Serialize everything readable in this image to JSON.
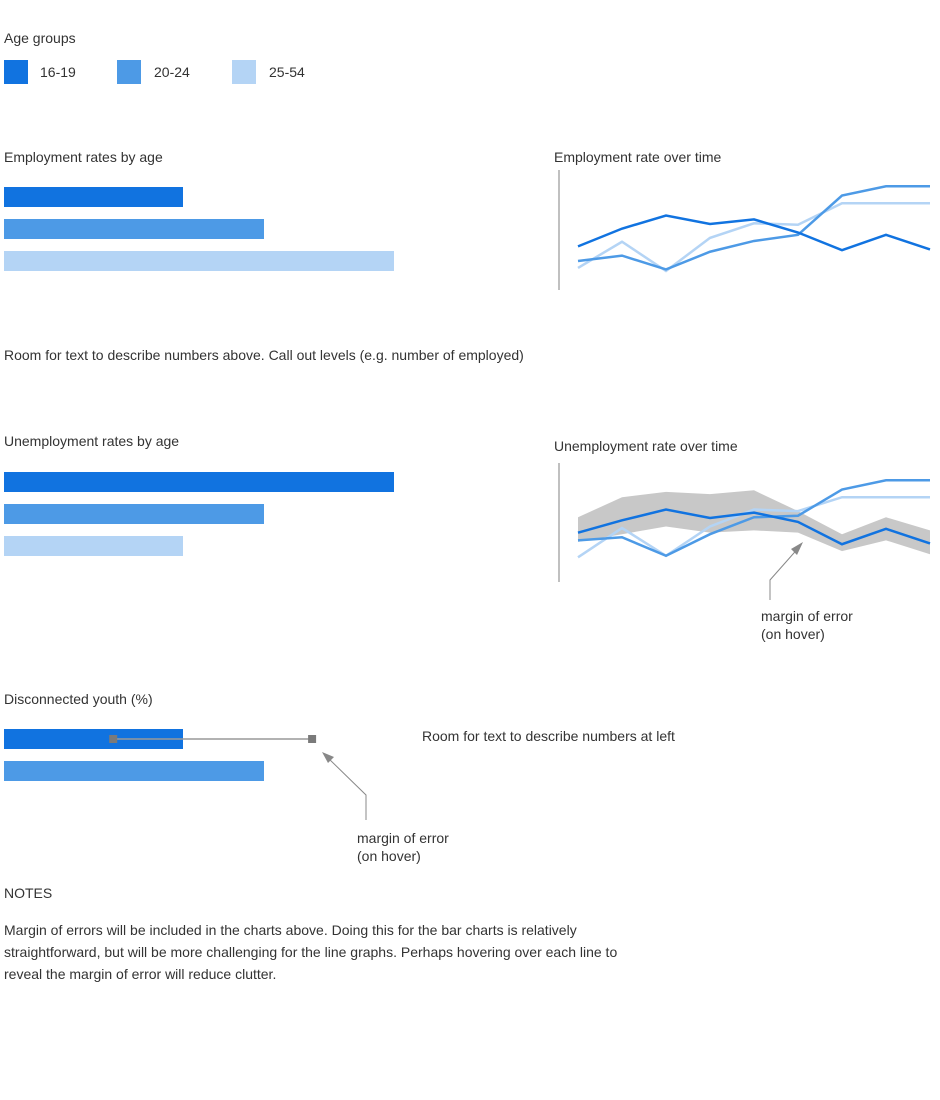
{
  "legend": {
    "title": "Age groups",
    "items": [
      {
        "label": "16-19",
        "color": "#1173e0"
      },
      {
        "label": "20-24",
        "color": "#4d9ae6"
      },
      {
        "label": "25-54",
        "color": "#b4d4f5"
      }
    ]
  },
  "employment": {
    "bar_title": "Employment rates by age",
    "line_title": "Employment rate over time",
    "bars": [
      {
        "group": "16-19",
        "value": 0.46
      },
      {
        "group": "20-24",
        "value": 0.667
      },
      {
        "group": "25-54",
        "value": 1.0
      }
    ],
    "lines": [
      {
        "group": "16-19",
        "values": [
          0.32,
          0.55,
          0.72,
          0.61,
          0.67,
          0.5,
          0.27,
          0.47,
          0.28
        ]
      },
      {
        "group": "20-24",
        "values": [
          0.13,
          0.2,
          0.02,
          0.25,
          0.39,
          0.47,
          0.98,
          1.1,
          1.1
        ]
      },
      {
        "group": "25-54",
        "values": [
          0.04,
          0.38,
          0.0,
          0.43,
          0.62,
          0.6,
          0.88,
          0.88,
          0.88
        ]
      }
    ],
    "note": "Room for text to describe numbers above. Call out levels (e.g. number of employed)"
  },
  "unemployment": {
    "bar_title": "Unemployment rates by age",
    "line_title": "Unemployment rate over time",
    "bars": [
      {
        "group": "16-19",
        "value": 1.0
      },
      {
        "group": "20-24",
        "value": 0.667
      },
      {
        "group": "25-54",
        "value": 0.46
      }
    ],
    "lines": [
      {
        "group": "16-19",
        "values": [
          0.42,
          0.58,
          0.72,
          0.61,
          0.68,
          0.56,
          0.27,
          0.47,
          0.28
        ]
      },
      {
        "group": "20-24",
        "values": [
          0.32,
          0.36,
          0.12,
          0.4,
          0.62,
          0.64,
          0.98,
          1.1,
          1.1
        ]
      },
      {
        "group": "25-54",
        "values": [
          0.1,
          0.48,
          0.12,
          0.5,
          0.72,
          0.7,
          0.88,
          0.88,
          0.88
        ]
      }
    ],
    "moe_upper": [
      0.62,
      0.88,
      0.95,
      0.92,
      0.97,
      0.7,
      0.4,
      0.62,
      0.45
    ],
    "moe_lower": [
      0.3,
      0.4,
      0.5,
      0.42,
      0.45,
      0.42,
      0.18,
      0.32,
      0.14
    ],
    "callout": [
      "margin of error",
      "(on hover)"
    ]
  },
  "disconnected": {
    "title": "Disconnected youth (%)",
    "bars": [
      {
        "group": "16-19",
        "value": 0.46,
        "moe_low": 0.28,
        "moe_high": 0.79
      },
      {
        "group": "20-24",
        "value": 0.667
      }
    ],
    "callout": [
      "margin of error",
      "(on hover)"
    ],
    "note": "Room for text to describe numbers at left"
  },
  "notes": {
    "heading": "NOTES",
    "body": "Margin of errors will be included in the charts above. Doing this for the bar charts is relatively straightforward, but will be more challenging for the line graphs. Perhaps hovering over each line to reveal the margin of error will reduce clutter."
  }
}
